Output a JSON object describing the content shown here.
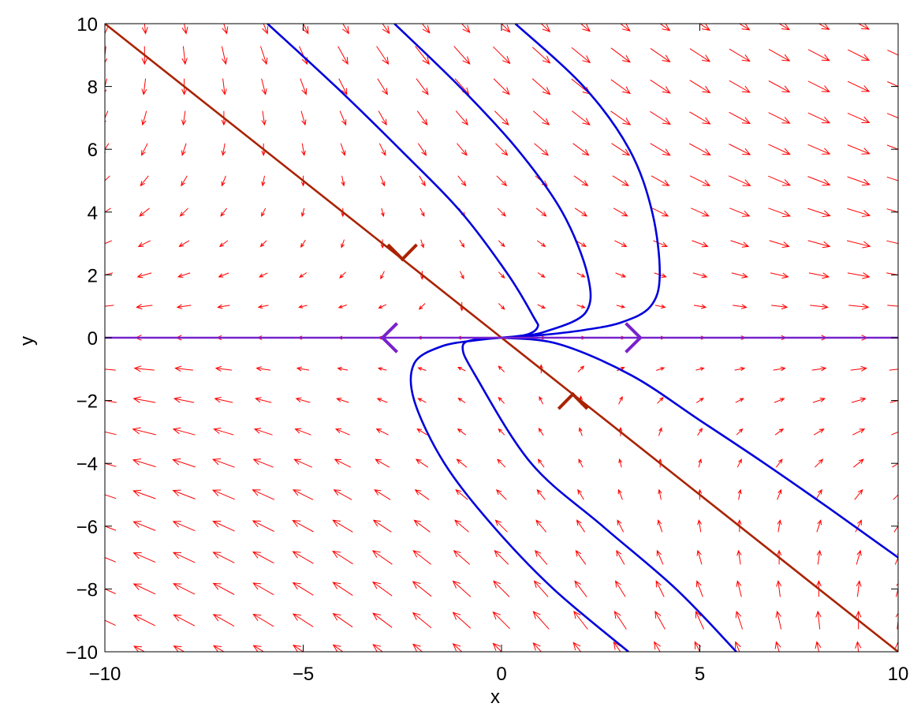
{
  "chart_data": {
    "type": "vector-field",
    "title": "",
    "xlabel": "x",
    "ylabel": "y",
    "xlim": [
      -10,
      10
    ],
    "ylim": [
      -10,
      10
    ],
    "x_ticks": [
      -10,
      -5,
      0,
      5,
      10
    ],
    "y_ticks": [
      -10,
      -8,
      -6,
      -4,
      -2,
      0,
      2,
      4,
      6,
      8,
      10
    ],
    "x_tick_labels": [
      "−10",
      "−5",
      "0",
      "5",
      "10"
    ],
    "y_tick_labels": [
      "−10",
      "−8",
      "−6",
      "−4",
      "−2",
      "0",
      "2",
      "4",
      "6",
      "8",
      "10"
    ],
    "grid": false,
    "vector_field": {
      "color": "#ff0000",
      "grid_step": 1,
      "x_range": [
        -10,
        10
      ],
      "y_range": [
        -10,
        10
      ]
    },
    "invariant_lines": [
      {
        "id": "slanted-manifold",
        "color": "#aa2200",
        "x": [
          -10,
          10
        ],
        "y": [
          10,
          -10
        ],
        "arrow_points": [
          [
            -2.5,
            2.5
          ],
          [
            1.8,
            -1.8
          ]
        ]
      },
      {
        "id": "x-axis-manifold",
        "color": "#7722cc",
        "x": [
          -10,
          10
        ],
        "y": [
          0,
          0
        ],
        "arrow_points": [
          [
            -3.0,
            0
          ],
          [
            3.5,
            0
          ]
        ]
      }
    ],
    "trajectories_color": "#0000dd",
    "trajectories": [
      {
        "x": [
          -5.9,
          -4.18,
          -2.56,
          -1.02,
          0.17,
          0.81,
          0.91,
          0.64,
          0.0
        ],
        "y": [
          10,
          8,
          6,
          4,
          2,
          0.66,
          0.34,
          0.1,
          0.0
        ]
      },
      {
        "x": [
          -2.7,
          -1.06,
          0.4,
          1.53,
          2.17,
          2.12,
          1.12,
          0.42,
          0.0
        ],
        "y": [
          10,
          8,
          6,
          4,
          2,
          0.8,
          0.2,
          0.04,
          0.0
        ]
      },
      {
        "x": [
          0.35,
          2.07,
          3.22,
          3.8,
          3.99,
          3.76,
          3.05,
          2.1,
          0.8,
          0.0
        ],
        "y": [
          10,
          8,
          6,
          4,
          2,
          1.0,
          0.5,
          0.25,
          0.06,
          0.0
        ]
      },
      {
        "x": [
          0.0,
          -0.64,
          -1.52,
          -2.2,
          -2.2,
          -1.44,
          -0.21,
          1.31,
          3.2
        ],
        "y": [
          0.0,
          -0.08,
          -0.28,
          -0.82,
          -2,
          -4,
          -6,
          -8,
          -10
        ]
      },
      {
        "x": [
          0.0,
          -0.65,
          -0.98,
          -0.66,
          0.75,
          2.55,
          4.4,
          5.92
        ],
        "y": [
          0.0,
          -0.05,
          -0.3,
          -1.2,
          -4,
          -6,
          -8,
          -10
        ]
      },
      {
        "x": [
          0.0,
          1.44,
          3.28,
          5.0,
          6.63,
          8.26,
          10.0
        ],
        "y": [
          0.0,
          -0.2,
          -1.2,
          -2.63,
          -4,
          -5.43,
          -7.0
        ]
      }
    ]
  }
}
